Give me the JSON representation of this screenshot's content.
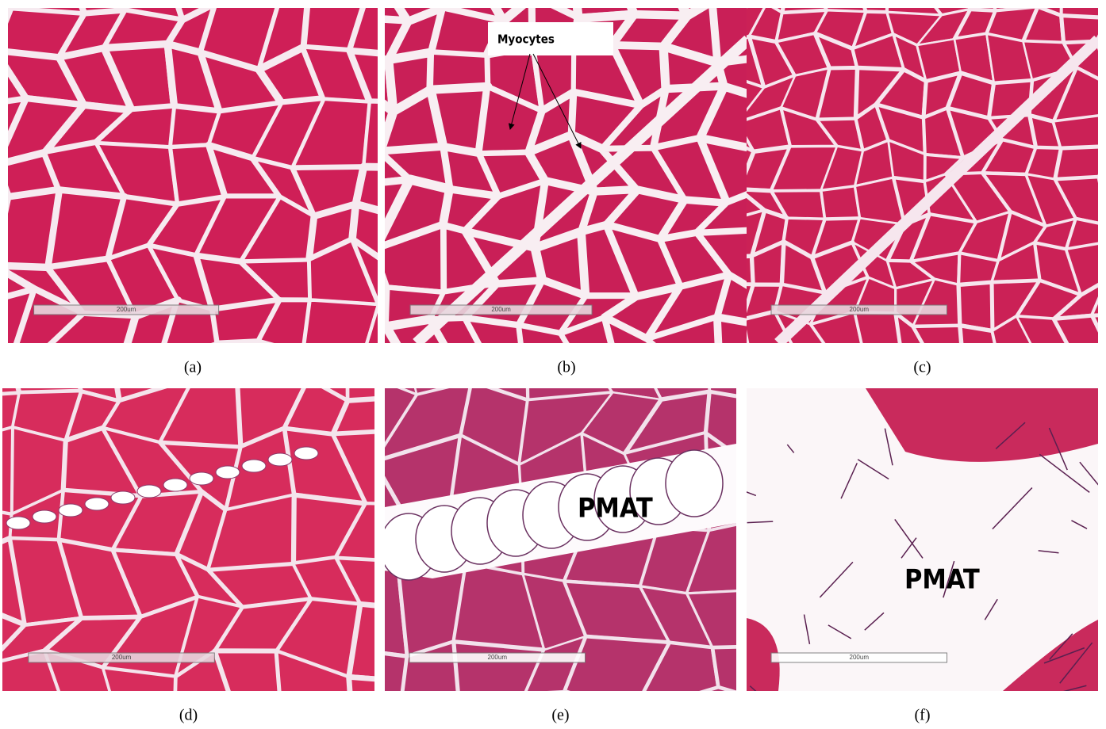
{
  "panels": [
    {
      "label": "(a)",
      "scale_bar": "200um"
    },
    {
      "label": "(b)",
      "scale_bar": "200um",
      "annotation": "Myocytes"
    },
    {
      "label": "(c)",
      "scale_bar": "200um"
    },
    {
      "label": "(d)",
      "scale_bar": "200um"
    },
    {
      "label": "(e)",
      "scale_bar": "200um",
      "annotation": "PMAT"
    },
    {
      "label": "(f)",
      "scale_bar": "200um",
      "annotation": "PMAT"
    }
  ]
}
